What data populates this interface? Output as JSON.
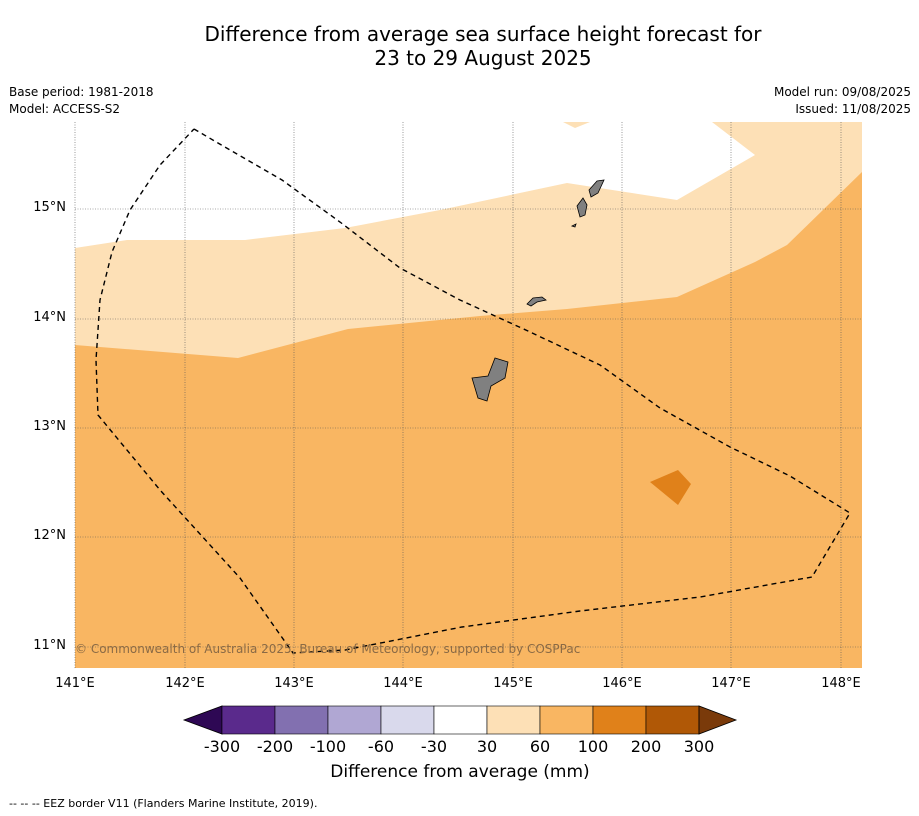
{
  "title_line1": "Difference from average sea surface height forecast for",
  "title_line2": "23 to 29 August 2025",
  "base_period": "Base period: 1981-2018",
  "model": "Model: ACCESS-S2",
  "model_run": "Model run: 09/08/2025",
  "issued": "Issued: 11/08/2025",
  "copyright": "© Commonwealth of Australia 2025, Bureau of Meteorology, supported by COSPPac",
  "x_ticks": [
    "141°E",
    "142°E",
    "143°E",
    "144°E",
    "145°E",
    "146°E",
    "147°E",
    "148°E"
  ],
  "y_ticks": [
    "15°N",
    "14°N",
    "13°N",
    "12°N",
    "11°N"
  ],
  "colorbar": {
    "labels": [
      "-300",
      "-200",
      "-100",
      "-60",
      "-30",
      "30",
      "60",
      "100",
      "200",
      "300"
    ],
    "colors": [
      "#2e0854",
      "#5a2a8c",
      "#8270b0",
      "#b0a7d3",
      "#d9d9ec",
      "#ffffff",
      "#fde0b6",
      "#f9b662",
      "#e0811a",
      "#b05806",
      "#7a3a0a"
    ],
    "title": "Difference from average (mm)"
  },
  "footnote": "-- -- -- EEZ border V11 (Flanders Marine Institute, 2019).",
  "map_colors": {
    "band_30_60": "#fde0b6",
    "band_60_100": "#f9b662",
    "band_100_200": "#e0811a",
    "land": "#808080",
    "eez": "#000000"
  }
}
